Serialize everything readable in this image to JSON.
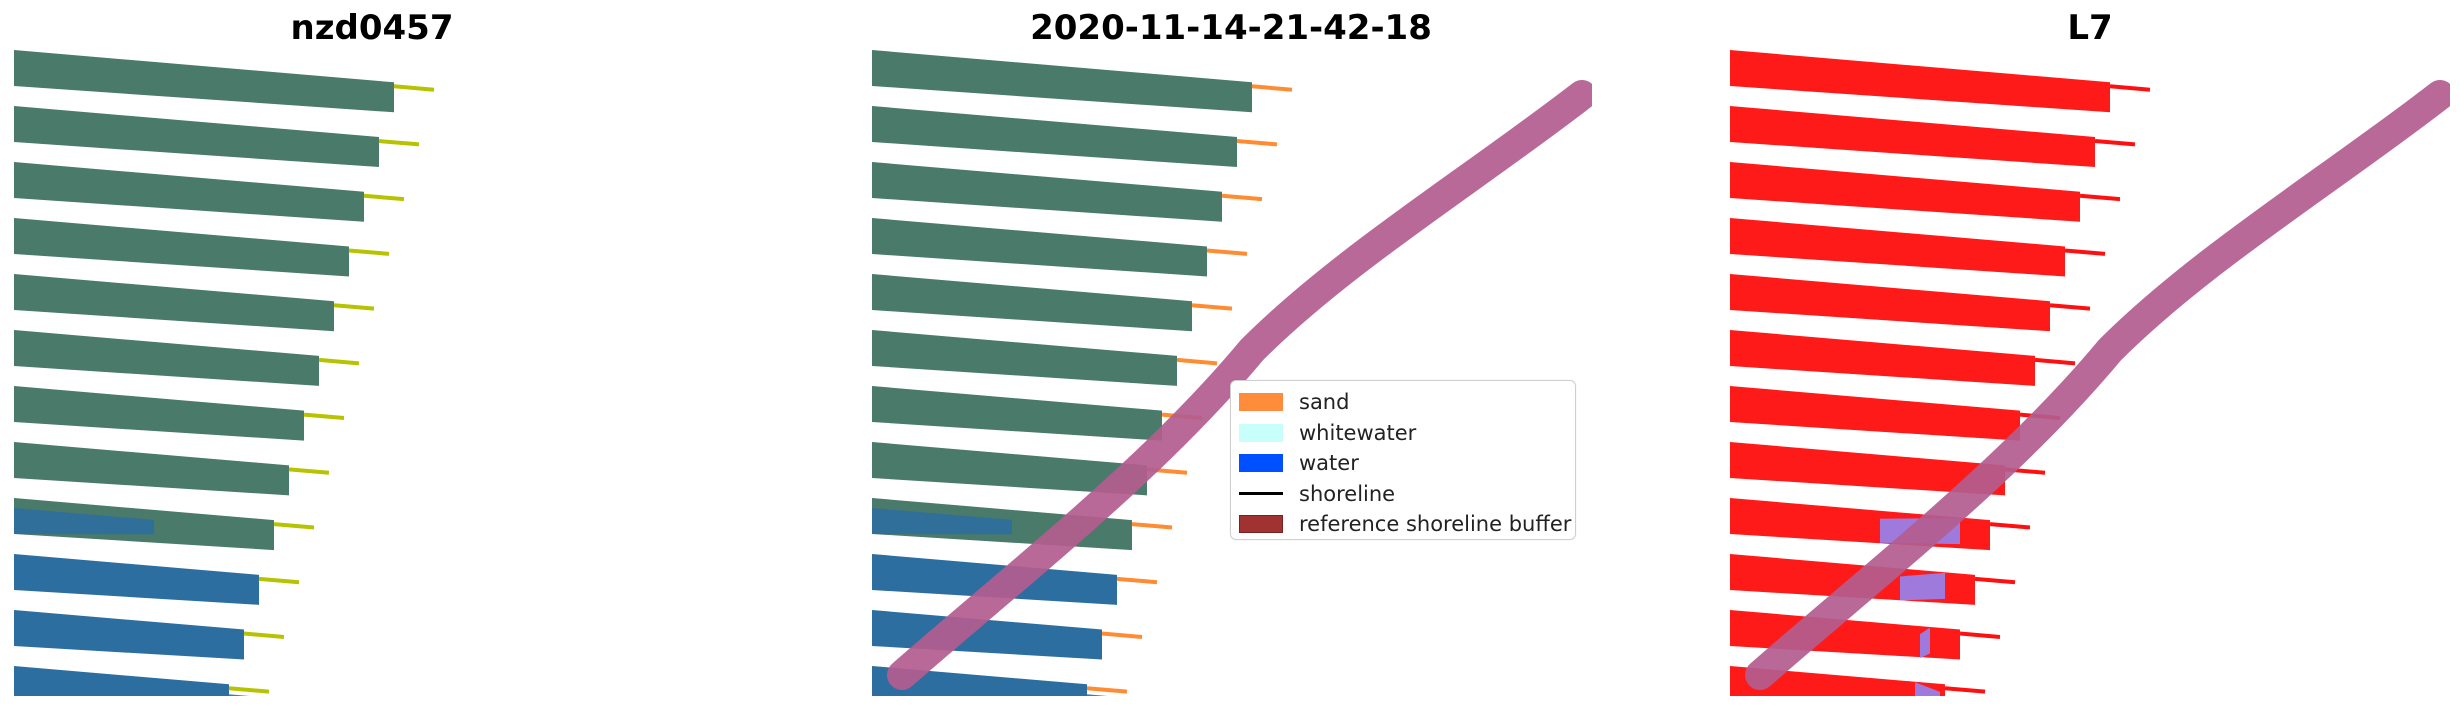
{
  "panels": [
    {
      "title": "nzd0457",
      "mode": "rgb",
      "tip_color": "#b7c300"
    },
    {
      "title": "2020-11-14-21-42-18",
      "mode": "rgb",
      "tip_color": "#ff8c32",
      "buffer": true
    },
    {
      "title": "L7",
      "mode": "index",
      "tip_color": "#ff1010",
      "buffer": true
    }
  ],
  "legend": {
    "items": [
      {
        "label": "sand",
        "color": "#ff8c3a",
        "type": "patch"
      },
      {
        "label": "whitewater",
        "color": "#c8fffa",
        "type": "patch"
      },
      {
        "label": "water",
        "color": "#0050ff",
        "type": "patch"
      },
      {
        "label": "shoreline",
        "color": "#000000",
        "type": "line"
      },
      {
        "label": "reference shoreline buffer",
        "color": "#a03232",
        "type": "patch"
      }
    ]
  },
  "colors": {
    "land": "#4a7a6a",
    "sea": "#2d6ea0",
    "index_red": "#ff1a1a",
    "index_water": "#8c8cff",
    "buffer": "#b35c8e"
  }
}
